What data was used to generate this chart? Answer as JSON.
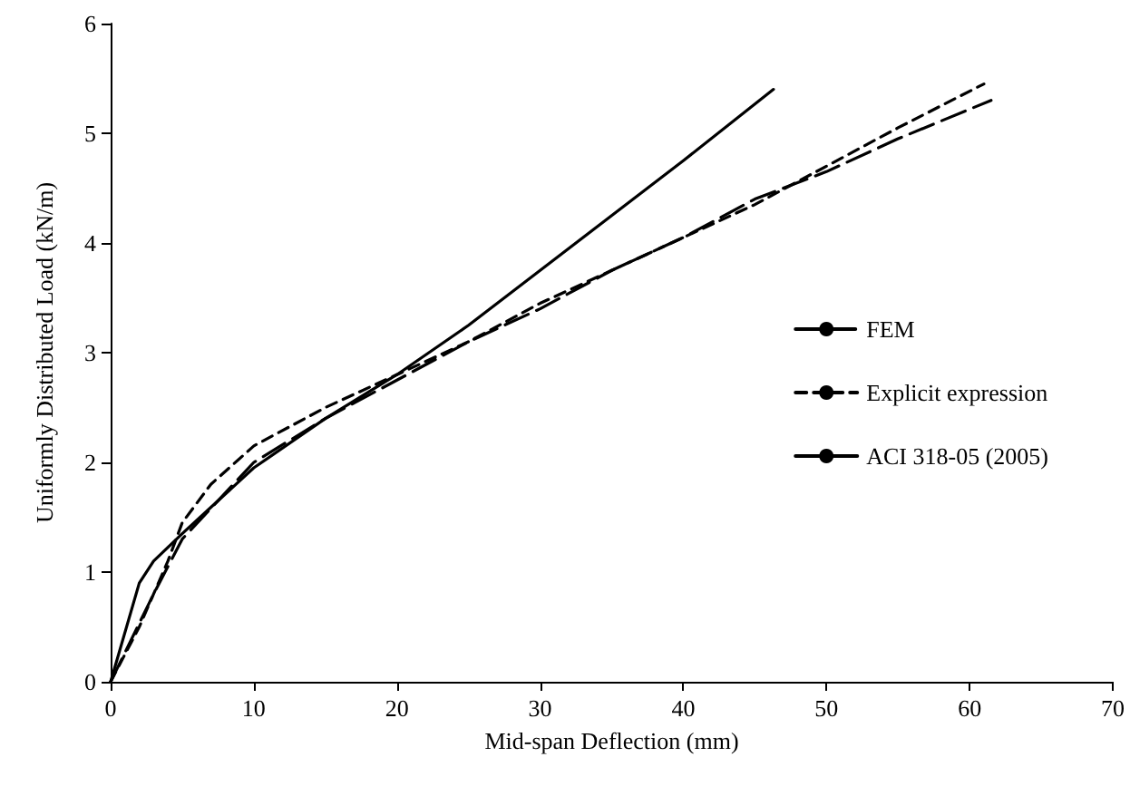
{
  "chart_data": {
    "type": "line",
    "xlabel": "Mid-span Deflection (mm)",
    "ylabel": "Uniformly Distributed Load (kN/m)",
    "xlim": [
      0,
      70
    ],
    "xticks": [
      0,
      10,
      20,
      30,
      40,
      50,
      60,
      70
    ],
    "ylim": [
      0,
      6
    ],
    "yticks": [
      0,
      1,
      2,
      3,
      4,
      5,
      6
    ],
    "grid": false,
    "legend": "right",
    "marker": "none",
    "series": [
      {
        "name": "FEM",
        "color": "#000000",
        "line_style": "dashed",
        "x": [
          0,
          3,
          5,
          10,
          15,
          20,
          25,
          30,
          35,
          40,
          45,
          50,
          55,
          61.5
        ],
        "values": [
          0,
          0.8,
          1.3,
          2.0,
          2.4,
          2.75,
          3.1,
          3.4,
          3.75,
          4.05,
          4.4,
          4.65,
          4.95,
          5.3
        ]
      },
      {
        "name": "Explicit expression",
        "color": "#000000",
        "line_style": "dashed",
        "x": [
          0,
          2,
          4,
          5,
          7,
          10,
          15,
          20,
          25,
          30,
          35,
          40,
          45,
          50,
          55,
          61
        ],
        "values": [
          0,
          0.5,
          1.1,
          1.45,
          1.8,
          2.15,
          2.5,
          2.8,
          3.1,
          3.45,
          3.75,
          4.05,
          4.35,
          4.7,
          5.05,
          5.45
        ]
      },
      {
        "name": "ACI 318-05 (2005)",
        "color": "#000000",
        "line_style": "solid",
        "x": [
          0,
          2,
          3,
          5,
          10,
          15,
          20,
          25,
          30,
          35,
          40,
          46.3
        ],
        "values": [
          0,
          0.9,
          1.1,
          1.35,
          1.95,
          2.4,
          2.8,
          3.25,
          3.75,
          4.25,
          4.75,
          5.4
        ]
      }
    ]
  }
}
